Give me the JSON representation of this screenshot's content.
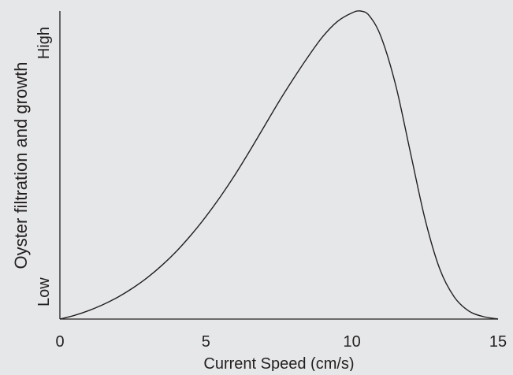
{
  "chart_data": {
    "type": "line",
    "title": "",
    "xlabel": "Current Speed (cm/s)",
    "ylabel": "Oyster filtration and growth",
    "x_ticks": [
      0,
      5,
      10,
      15
    ],
    "xlim": [
      0,
      15
    ],
    "ylim": [
      0,
      1
    ],
    "y_tick_labels": [
      {
        "label": "Low",
        "value": 0
      },
      {
        "label": "High",
        "value": 1
      }
    ],
    "grid": false,
    "series": [
      {
        "x": [
          0,
          0.5,
          1,
          1.5,
          2,
          2.5,
          3,
          3.5,
          4,
          4.5,
          5,
          5.5,
          6,
          6.5,
          7,
          7.5,
          8,
          8.5,
          9,
          9.5,
          10,
          10.3,
          10.6,
          11,
          11.5,
          12,
          12.5,
          13,
          13.5,
          14,
          14.5,
          15
        ],
        "y": [
          0,
          0.012,
          0.028,
          0.048,
          0.072,
          0.101,
          0.135,
          0.175,
          0.221,
          0.274,
          0.333,
          0.398,
          0.469,
          0.546,
          0.626,
          0.706,
          0.781,
          0.852,
          0.917,
          0.966,
          0.994,
          1.0,
          0.984,
          0.915,
          0.758,
          0.541,
          0.325,
          0.164,
          0.072,
          0.026,
          0.008,
          0
        ]
      }
    ],
    "colors": {
      "line": "#231f20",
      "axis": "#231f20",
      "background": "#e6e7e8"
    }
  }
}
